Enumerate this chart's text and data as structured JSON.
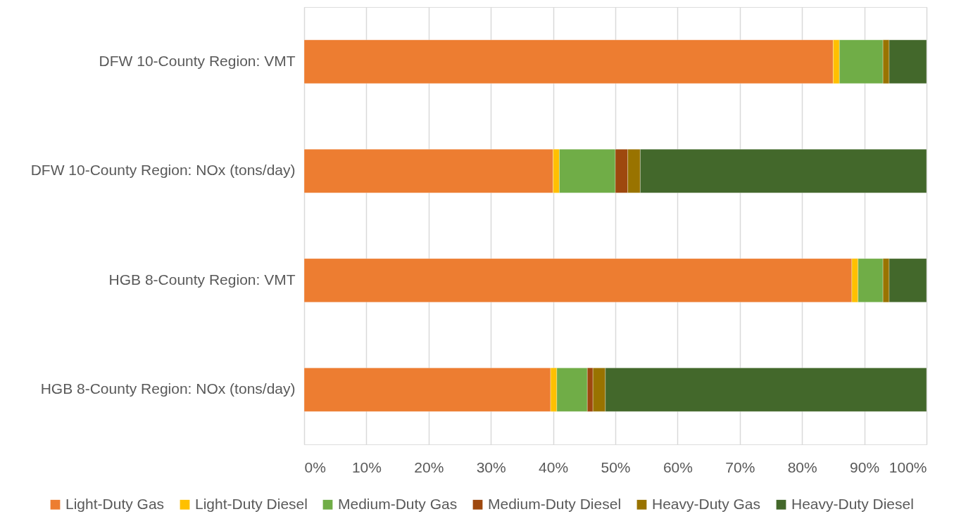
{
  "chart_data": {
    "type": "bar",
    "orientation": "horizontal",
    "stacked": true,
    "categories": [
      "DFW 10-County Region: VMT",
      "DFW 10-County Region: NOx (tons/day)",
      "HGB 8-County Region: VMT",
      "HGB 8-County Region: NOx (tons/day)"
    ],
    "series": [
      {
        "name": "Light-Duty Gas",
        "color": "#ed7d31",
        "values": [
          85,
          40,
          88,
          39.6
        ]
      },
      {
        "name": "Light-Duty Diesel",
        "color": "#ffc000",
        "values": [
          1,
          1,
          1,
          1
        ]
      },
      {
        "name": "Medium-Duty Gas",
        "color": "#70ad47",
        "values": [
          7,
          9,
          4,
          4.9
        ]
      },
      {
        "name": "Medium-Duty Diesel",
        "color": "#9e480e",
        "values": [
          null,
          2,
          null,
          0.9
        ]
      },
      {
        "name": "Heavy-Duty Gas",
        "color": "#997300",
        "values": [
          1,
          2,
          1,
          2
        ]
      },
      {
        "name": "Heavy-Duty Diesel",
        "color": "#43682b",
        "values": [
          6,
          46,
          6,
          51.6
        ]
      }
    ],
    "xlim": [
      0,
      100
    ],
    "xticks": [
      {
        "value": 0,
        "label": "0%"
      },
      {
        "value": 10,
        "label": "10%"
      },
      {
        "value": 20,
        "label": "20%"
      },
      {
        "value": 30,
        "label": "30%"
      },
      {
        "value": 40,
        "label": "40%"
      },
      {
        "value": 50,
        "label": "50%"
      },
      {
        "value": 60,
        "label": "60%"
      },
      {
        "value": 70,
        "label": "70%"
      },
      {
        "value": 80,
        "label": "80%"
      },
      {
        "value": 90,
        "label": "90%"
      },
      {
        "value": 100,
        "label": "100%"
      }
    ],
    "grid": "x",
    "legend": "bottom"
  }
}
